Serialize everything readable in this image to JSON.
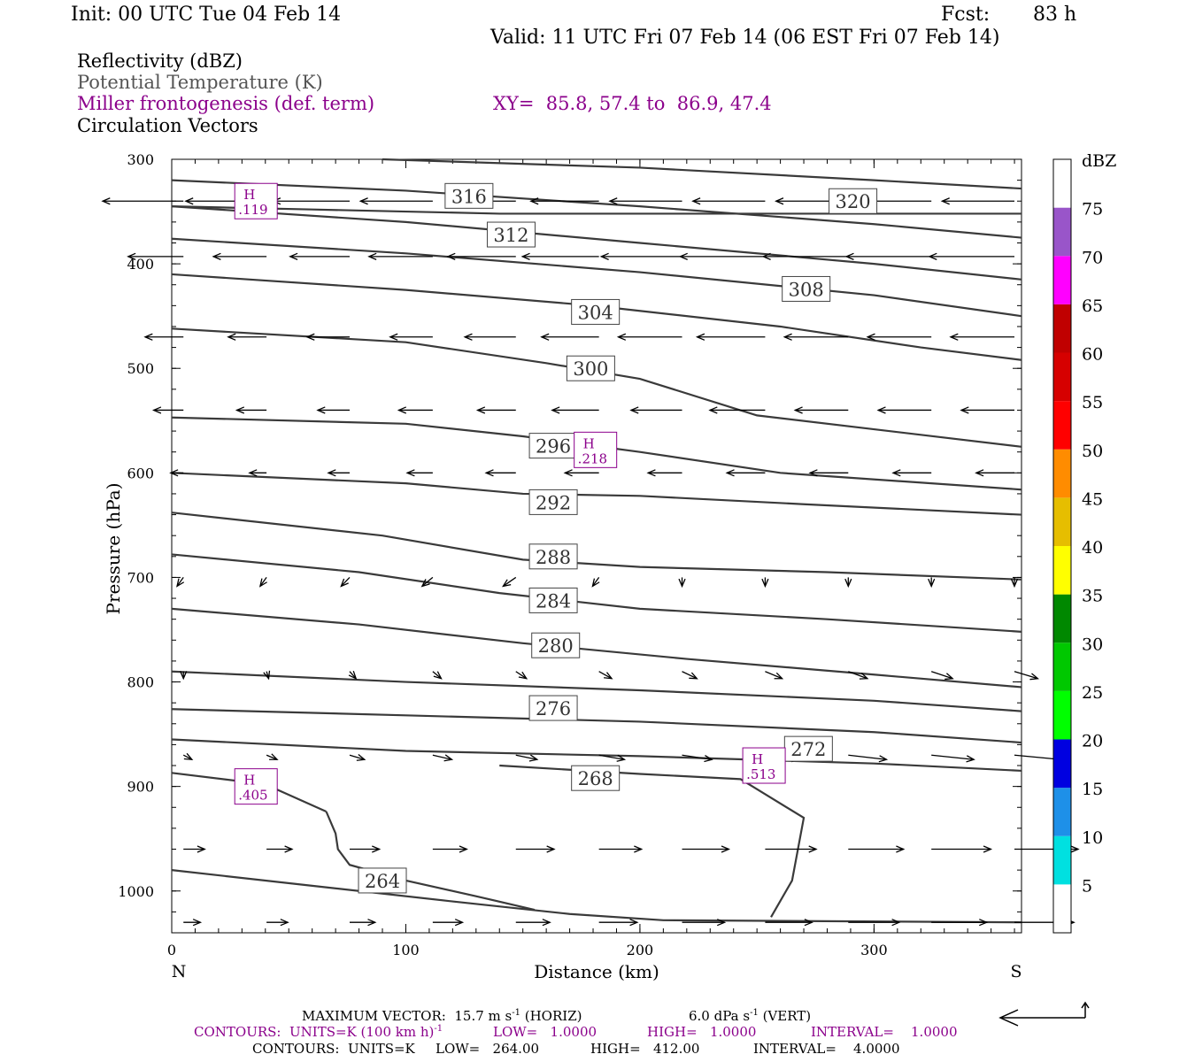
{
  "header": {
    "init": "Init: 00 UTC Tue 04 Feb 14",
    "fcst_label": "Fcst:",
    "fcst_value": "83 h",
    "valid": "Valid: 11 UTC Fri 07 Feb 14 (06 EST Fri 07 Feb 14)"
  },
  "fields": {
    "reflectivity": "Reflectivity (dBZ)",
    "theta": "Potential Temperature (K)",
    "frontogenesis": "Miller frontogenesis (def. term)",
    "xy": "XY=  85.8, 57.4 to  86.9, 47.4",
    "circulation": "Circulation Vectors"
  },
  "footer": {
    "vector_label": "MAXIMUM VECTOR:  15.7 m s",
    "vector_horiz_tail": " (HORIZ)",
    "vector_vert": "6.0 dPa s",
    "vector_vert_tail": " (VERT)",
    "purple_units": "CONTOURS:  UNITS=K (100 km h)",
    "purple_low": "LOW=   1.0000",
    "purple_high": "HIGH=   1.0000",
    "purple_interval": "INTERVAL=    1.0000",
    "black_units": "CONTOURS:  UNITS=K",
    "black_low": "LOW=   264.00",
    "black_high": "HIGH=   412.00",
    "black_interval": "INTERVAL=    4.0000",
    "superscript": "-1"
  },
  "colors": {
    "theta_contour": "#3a3a3a",
    "frontogenesis": "#8b008b"
  },
  "chart_data": {
    "type": "cross-section",
    "xlabel": "Distance (km)",
    "ylabel": "Pressure (hPa)",
    "xlim": [
      0,
      363
    ],
    "ylim": [
      1040,
      300
    ],
    "x_ticks": [
      0,
      100,
      200,
      300
    ],
    "y_ticks": [
      300,
      400,
      500,
      600,
      700,
      800,
      900,
      1000
    ],
    "x_end_labels": {
      "left": "N",
      "right": "S"
    },
    "colorbar": {
      "unit": "dBZ",
      "ticks": [
        5,
        10,
        15,
        20,
        25,
        30,
        35,
        40,
        45,
        50,
        55,
        60,
        65,
        70,
        75
      ],
      "colors": [
        "#ffffff",
        "#00e0e0",
        "#1e90e8",
        "#0000e0",
        "#00ff00",
        "#00c800",
        "#008800",
        "#ffff00",
        "#e6be00",
        "#ff8c00",
        "#ff0000",
        "#d60000",
        "#c00000",
        "#ff00ff",
        "#9955c9",
        "#ffffff"
      ]
    },
    "theta_contours": [
      {
        "value": 264,
        "label": "264",
        "label_at": [
          90,
          990
        ],
        "points": [
          [
            0,
            980
          ],
          [
            60,
            995
          ],
          [
            120,
            1010
          ],
          [
            170,
            1022
          ],
          [
            210,
            1028
          ],
          [
            363,
            1030
          ]
        ]
      },
      {
        "value": 268,
        "label": "268",
        "label_at": [
          181,
          892
        ],
        "points": [
          [
            0,
            887
          ],
          [
            40,
            898
          ],
          [
            66,
            924
          ]
        ]
      },
      {
        "value": 268,
        "label": "",
        "label_at": null,
        "points": [
          [
            66,
            924
          ],
          [
            70,
            945
          ],
          [
            71,
            960
          ],
          [
            76,
            975
          ],
          [
            100,
            990
          ],
          [
            130,
            1005
          ],
          [
            155,
            1018
          ]
        ]
      },
      {
        "value": 268,
        "label": "",
        "label_at": null,
        "points": [
          [
            140,
            880
          ],
          [
            200,
            888
          ],
          [
            243,
            893
          ],
          [
            270,
            930
          ],
          [
            265,
            990
          ],
          [
            256,
            1025
          ]
        ]
      },
      {
        "value": 272,
        "label": "272",
        "label_at": [
          272,
          864
        ],
        "points": [
          [
            0,
            855
          ],
          [
            100,
            866
          ],
          [
            200,
            871
          ],
          [
            300,
            878
          ],
          [
            363,
            885
          ]
        ]
      },
      {
        "value": 276,
        "label": "276",
        "label_at": [
          163,
          825
        ],
        "points": [
          [
            0,
            826
          ],
          [
            100,
            832
          ],
          [
            200,
            838
          ],
          [
            300,
            848
          ],
          [
            363,
            858
          ]
        ]
      },
      {
        "value": 276,
        "label": "",
        "label_at": null,
        "points": [
          [
            0,
            790
          ],
          [
            100,
            800
          ],
          [
            200,
            808
          ],
          [
            300,
            818
          ],
          [
            363,
            828
          ]
        ]
      },
      {
        "value": 280,
        "label": "280",
        "label_at": [
          164,
          765
        ],
        "points": [
          [
            0,
            730
          ],
          [
            80,
            745
          ],
          [
            150,
            763
          ],
          [
            220,
            778
          ],
          [
            300,
            793
          ],
          [
            363,
            805
          ]
        ]
      },
      {
        "value": 284,
        "label": "284",
        "label_at": [
          163,
          722
        ],
        "points": [
          [
            0,
            678
          ],
          [
            80,
            695
          ],
          [
            140,
            715
          ],
          [
            200,
            730
          ],
          [
            280,
            740
          ],
          [
            363,
            752
          ]
        ]
      },
      {
        "value": 288,
        "label": "288",
        "label_at": [
          163,
          680
        ],
        "points": [
          [
            0,
            638
          ],
          [
            90,
            660
          ],
          [
            150,
            683
          ],
          [
            200,
            690
          ],
          [
            280,
            695
          ],
          [
            363,
            702
          ]
        ]
      },
      {
        "value": 292,
        "label": "292",
        "label_at": [
          163,
          628
        ],
        "points": [
          [
            0,
            600
          ],
          [
            100,
            610
          ],
          [
            150,
            620
          ],
          [
            200,
            622
          ],
          [
            270,
            630
          ],
          [
            363,
            640
          ]
        ]
      },
      {
        "value": 296,
        "label": "296",
        "label_at": [
          163,
          574
        ],
        "points": [
          [
            0,
            547
          ],
          [
            100,
            553
          ],
          [
            150,
            565
          ],
          [
            200,
            580
          ],
          [
            260,
            600
          ],
          [
            363,
            616
          ]
        ]
      },
      {
        "value": 300,
        "label": "300",
        "label_at": [
          179,
          500
        ],
        "points": [
          [
            0,
            462
          ],
          [
            100,
            475
          ],
          [
            160,
            495
          ],
          [
            200,
            510
          ],
          [
            250,
            545
          ],
          [
            363,
            575
          ]
        ]
      },
      {
        "value": 304,
        "label": "304",
        "label_at": [
          181,
          446
        ],
        "points": [
          [
            0,
            410
          ],
          [
            100,
            425
          ],
          [
            180,
            440
          ],
          [
            260,
            460
          ],
          [
            320,
            480
          ],
          [
            363,
            492
          ]
        ]
      },
      {
        "value": 308,
        "label": "308",
        "label_at": [
          271,
          424
        ],
        "points": [
          [
            0,
            376
          ],
          [
            100,
            390
          ],
          [
            200,
            408
          ],
          [
            300,
            430
          ],
          [
            363,
            450
          ]
        ]
      },
      {
        "value": 312,
        "label": "312",
        "label_at": [
          145,
          372
        ],
        "points": [
          [
            0,
            345
          ],
          [
            100,
            360
          ],
          [
            200,
            380
          ],
          [
            300,
            400
          ],
          [
            363,
            415
          ]
        ]
      },
      {
        "value": 316,
        "label": "316",
        "label_at": [
          127,
          335
        ],
        "points": [
          [
            0,
            320
          ],
          [
            100,
            330
          ],
          [
            200,
            345
          ],
          [
            300,
            362
          ],
          [
            363,
            375
          ]
        ]
      },
      {
        "value": 320,
        "label": "320",
        "label_at": [
          291,
          340
        ],
        "points": [
          [
            90,
            300
          ],
          [
            200,
            308
          ],
          [
            300,
            320
          ],
          [
            363,
            328
          ]
        ]
      },
      {
        "value": 324,
        "label": "",
        "label_at": null,
        "points": [
          [
            0,
            345
          ],
          [
            60,
            348
          ],
          [
            140,
            352
          ],
          [
            363,
            352
          ]
        ]
      }
    ],
    "frontogenesis_maxima": [
      {
        "label": "H",
        "value": ".119",
        "at": [
          36,
          340
        ]
      },
      {
        "label": "H",
        "value": ".218",
        "at": [
          181,
          578
        ]
      },
      {
        "label": "H",
        "value": ".405",
        "at": [
          36,
          900
        ]
      },
      {
        "label": "H",
        "value": ".513",
        "at": [
          253,
          880
        ]
      }
    ],
    "circulation_vectors": [
      {
        "y": 340,
        "u": [
          -38,
          -38,
          -36,
          -34,
          -32,
          -32,
          -34,
          -34,
          -34,
          -34,
          -34
        ]
      },
      {
        "y": 393,
        "u": [
          -26,
          -25,
          -28,
          -30,
          -32,
          -36,
          -38,
          -40,
          -40,
          -40,
          -40
        ]
      },
      {
        "y": 470,
        "u": [
          -18,
          -18,
          -20,
          -20,
          -24,
          -27,
          -30,
          -32,
          -30,
          -30,
          -30
        ]
      },
      {
        "y": 540,
        "u": [
          -14,
          -14,
          -15,
          -16,
          -18,
          -22,
          -24,
          -26,
          -25,
          -25,
          -25
        ]
      },
      {
        "y": 600,
        "u": [
          -6,
          -8,
          -10,
          -12,
          -14,
          -16,
          -16,
          -18,
          -18,
          -18,
          -18
        ]
      },
      {
        "y": 700,
        "u": [
          -3,
          -3,
          -4,
          -5,
          -6,
          -3,
          0,
          0,
          0,
          0,
          0
        ]
      },
      {
        "y": 790,
        "u": [
          0,
          1,
          3,
          4,
          5,
          6,
          7,
          8,
          9,
          10,
          11
        ]
      },
      {
        "y": 870,
        "u": [
          4,
          5,
          7,
          9,
          10,
          12,
          14,
          16,
          18,
          20,
          22
        ]
      },
      {
        "y": 960,
        "u": [
          10,
          12,
          14,
          16,
          18,
          20,
          22,
          24,
          26,
          28,
          30
        ]
      },
      {
        "y": 1030,
        "u": [
          8,
          10,
          12,
          14,
          16,
          18,
          20,
          22,
          24,
          26,
          28
        ]
      }
    ]
  }
}
